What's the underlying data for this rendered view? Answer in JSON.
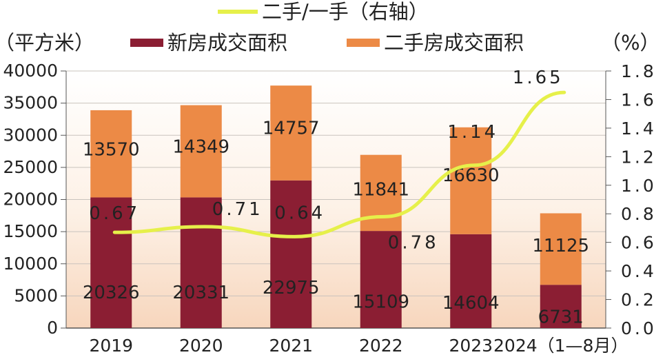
{
  "chart_data": {
    "type": "bar",
    "stacked": true,
    "categories": [
      "2019",
      "2020",
      "2021",
      "2022",
      "2023",
      "2024（1—8月）"
    ],
    "series": [
      {
        "name": "新房成交面积",
        "values": [
          20326,
          20331,
          22975,
          15109,
          14604,
          6731
        ],
        "color": "#8b1e33"
      },
      {
        "name": "二手房成交面积",
        "values": [
          13570,
          14349,
          14757,
          11841,
          16630,
          11125
        ],
        "color": "#ec8a46"
      }
    ],
    "line_series": {
      "name": "二手/一手（右轴）",
      "values": [
        0.67,
        0.71,
        0.64,
        0.78,
        1.14,
        1.65
      ],
      "color": "#e6f04a",
      "axis": "right"
    },
    "left_axis": {
      "unit": "（平方米）",
      "ylim": [
        0,
        40000
      ],
      "ticks": [
        "0",
        "5000",
        "10000",
        "15000",
        "20000",
        "25000",
        "30000",
        "35000",
        "40000"
      ]
    },
    "right_axis": {
      "unit": "（%）",
      "ylim": [
        0,
        1.8
      ],
      "ticks": [
        "0.0",
        "0.2",
        "0.4",
        "0.6",
        "0.8",
        "1.0",
        "1.2",
        "1.4",
        "1.6",
        "1.8"
      ]
    },
    "legend": {
      "line_label": "二手/一手（右轴）",
      "new_label": "新房成交面积",
      "second_label": "二手房成交面积"
    },
    "grid": true
  }
}
